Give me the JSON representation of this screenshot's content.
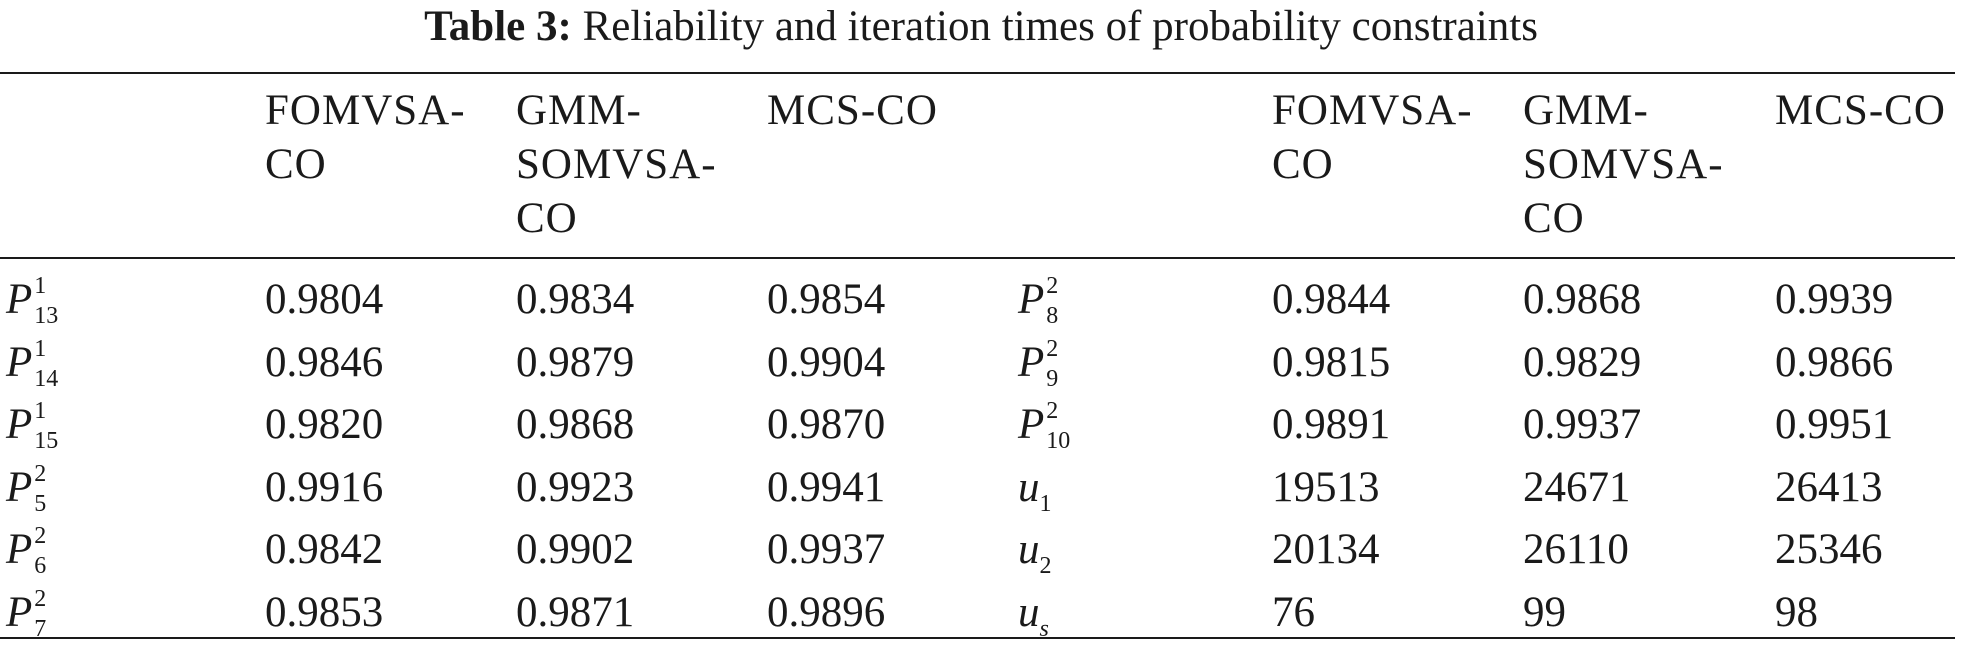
{
  "caption": {
    "label": "Table 3:",
    "text": "Reliability and iteration times of probability constraints"
  },
  "headers": {
    "left": [
      "FOMVSA-\nCO",
      "GMM-\nSOMVSA-\nCO",
      "MCS-CO"
    ],
    "right": [
      "FOMVSA-\nCO",
      "GMM-\nSOMVSA-\nCO",
      "MCS-CO"
    ]
  },
  "rows": [
    {
      "left_symbol": {
        "base": "P",
        "sup": "1",
        "sub": "13"
      },
      "left_values": [
        "0.9804",
        "0.9834",
        "0.9854"
      ],
      "right_symbol": {
        "base": "P",
        "sup": "2",
        "sub": "8"
      },
      "right_values": [
        "0.9844",
        "0.9868",
        "0.9939"
      ]
    },
    {
      "left_symbol": {
        "base": "P",
        "sup": "1",
        "sub": "14"
      },
      "left_values": [
        "0.9846",
        "0.9879",
        "0.9904"
      ],
      "right_symbol": {
        "base": "P",
        "sup": "2",
        "sub": "9"
      },
      "right_values": [
        "0.9815",
        "0.9829",
        "0.9866"
      ]
    },
    {
      "left_symbol": {
        "base": "P",
        "sup": "1",
        "sub": "15"
      },
      "left_values": [
        "0.9820",
        "0.9868",
        "0.9870"
      ],
      "right_symbol": {
        "base": "P",
        "sup": "2",
        "sub": "10"
      },
      "right_values": [
        "0.9891",
        "0.9937",
        "0.9951"
      ]
    },
    {
      "left_symbol": {
        "base": "P",
        "sup": "2",
        "sub": "5"
      },
      "left_values": [
        "0.9916",
        "0.9923",
        "0.9941"
      ],
      "right_symbol": {
        "base": "u",
        "sup": "",
        "sub": "1"
      },
      "right_values": [
        "19513",
        "24671",
        "26413"
      ]
    },
    {
      "left_symbol": {
        "base": "P",
        "sup": "2",
        "sub": "6"
      },
      "left_values": [
        "0.9842",
        "0.9902",
        "0.9937"
      ],
      "right_symbol": {
        "base": "u",
        "sup": "",
        "sub": "2"
      },
      "right_values": [
        "20134",
        "26110",
        "25346"
      ]
    },
    {
      "left_symbol": {
        "base": "P",
        "sup": "2",
        "sub": "7"
      },
      "left_values": [
        "0.9853",
        "0.9871",
        "0.9896"
      ],
      "right_symbol": {
        "base": "u",
        "sup": "",
        "sub": "s"
      },
      "right_values": [
        "76",
        "99",
        "98"
      ]
    }
  ]
}
